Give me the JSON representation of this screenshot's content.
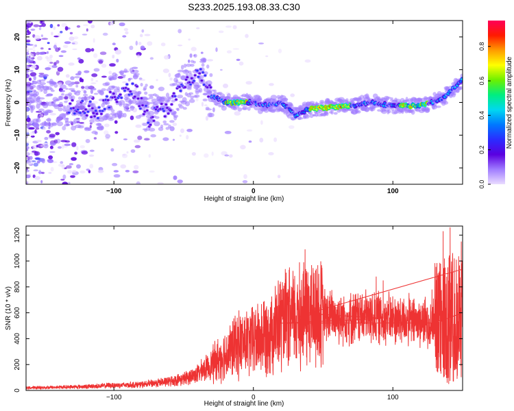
{
  "title": "S233.2025.193.08.33.C30",
  "chart_data": [
    {
      "type": "heatmap",
      "xlabel": "Height of straight line (km)",
      "ylabel": "Frequency (Hz)",
      "xlim": [
        -163,
        150
      ],
      "ylim": [
        -25,
        25
      ],
      "xticks": [
        -100,
        0,
        100
      ],
      "yticks": [
        -20,
        -10,
        0,
        10,
        20
      ],
      "colorbar": {
        "label": "Normalized spectral amplitude",
        "range": [
          0,
          0.95
        ],
        "ticks": [
          0.0,
          0.2,
          0.4,
          0.6,
          0.8
        ],
        "colors": [
          "#eadcff",
          "#a07cff",
          "#5a00e0",
          "#2a2cff",
          "#0078ff",
          "#00d8f0",
          "#00ee80",
          "#6cf000",
          "#ffff00",
          "#ff9c00",
          "#ff1a00",
          "#ff0058"
        ]
      },
      "ridge": [
        {
          "x": -160,
          "y": 0
        },
        {
          "x": -125,
          "y": -1
        },
        {
          "x": -110,
          "y": -3
        },
        {
          "x": -100,
          "y": 2
        },
        {
          "x": -85,
          "y": 4
        },
        {
          "x": -75,
          "y": -5
        },
        {
          "x": -60,
          "y": -1
        },
        {
          "x": -50,
          "y": 5
        },
        {
          "x": -38,
          "y": 9
        },
        {
          "x": -30,
          "y": 2
        },
        {
          "x": -20,
          "y": 0
        },
        {
          "x": 0,
          "y": 0
        },
        {
          "x": 10,
          "y": -1
        },
        {
          "x": 20,
          "y": 0
        },
        {
          "x": 30,
          "y": -4
        },
        {
          "x": 40,
          "y": -2
        },
        {
          "x": 70,
          "y": -1
        },
        {
          "x": 85,
          "y": 0
        },
        {
          "x": 100,
          "y": -1
        },
        {
          "x": 120,
          "y": -1
        },
        {
          "x": 135,
          "y": 1
        },
        {
          "x": 145,
          "y": 5
        },
        {
          "x": 150,
          "y": 7
        }
      ]
    },
    {
      "type": "line",
      "xlabel": "Height of straight line (km)",
      "ylabel": "SNR (10 * v/v)",
      "xlim": [
        -163,
        150
      ],
      "ylim": [
        0,
        1270
      ],
      "xticks": [
        -100,
        0,
        100
      ],
      "yticks": [
        0,
        200,
        400,
        600,
        800,
        1000,
        1200
      ],
      "series": [
        {
          "color": "#ee3333",
          "x": [
            -163,
            -140,
            -120,
            -100,
            -80,
            -60,
            -50,
            -40,
            -30,
            -20,
            -10,
            0,
            10,
            20,
            30,
            40,
            50,
            60,
            70,
            80,
            90,
            100,
            110,
            120,
            130,
            140,
            150
          ],
          "y": [
            20,
            25,
            30,
            40,
            45,
            70,
            90,
            130,
            200,
            280,
            360,
            380,
            450,
            520,
            560,
            600,
            580,
            570,
            560,
            570,
            560,
            550,
            540,
            530,
            520,
            560,
            600
          ],
          "peaks": [
            {
              "x": 37,
              "y": 1090
            },
            {
              "x": 33,
              "y": 990
            },
            {
              "x": 45,
              "y": 940
            },
            {
              "x": 88,
              "y": 880
            },
            {
              "x": 93,
              "y": 850
            },
            {
              "x": 20,
              "y": 780
            },
            {
              "x": 128,
              "y": 780
            },
            {
              "x": 136,
              "y": 1230
            },
            {
              "x": 141,
              "y": 1260
            },
            {
              "x": 144,
              "y": 1020
            },
            {
              "x": 149,
              "y": 1150
            },
            {
              "x": 140,
              "y": 50
            },
            {
              "x": 138,
              "y": 120
            },
            {
              "x": 146,
              "y": 90
            }
          ]
        }
      ]
    }
  ]
}
